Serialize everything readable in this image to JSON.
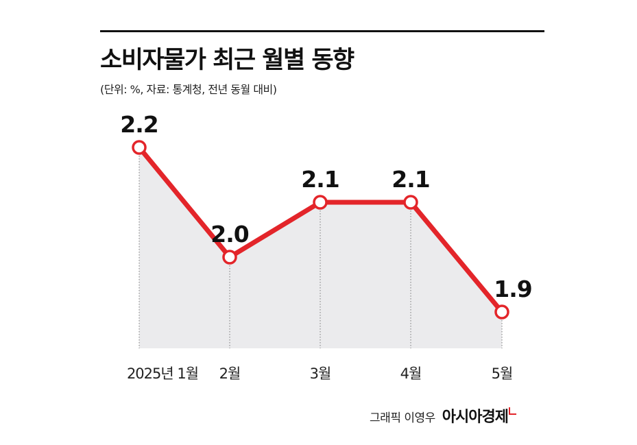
{
  "chart_data": {
    "type": "line",
    "title": "소비자물가 최근 월별 동향",
    "subtitle": "(단위: %, 자료: 통계청, 전년 동월 대비)",
    "categories": [
      "2025년 1월",
      "2월",
      "3월",
      "4월",
      "5월"
    ],
    "values": [
      2.2,
      2.0,
      2.1,
      2.1,
      1.9
    ],
    "value_labels": [
      "2.2",
      "2.0",
      "2.1",
      "2.1",
      "1.9"
    ],
    "ylim": [
      1.8,
      2.2
    ],
    "grid": false,
    "line_color": "#e3252a",
    "fill_color": "#ebebed"
  },
  "credit": {
    "text": "그래픽 이영우",
    "brand": "아시아경제"
  }
}
